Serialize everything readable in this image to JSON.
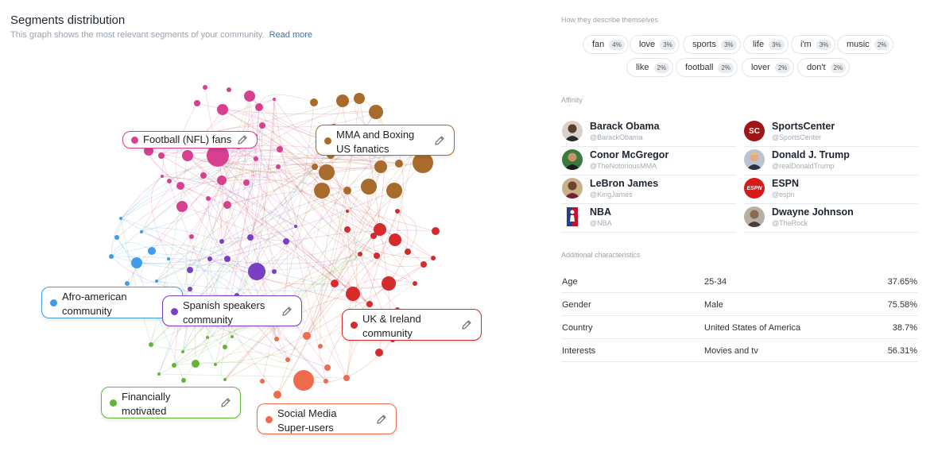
{
  "header": {
    "title": "Segments distribution",
    "subtitle": "This graph shows the most relevant segments of your community.",
    "read_more": "Read more"
  },
  "segments": [
    {
      "label": "Football (NFL) fans",
      "color": "#d6408f"
    },
    {
      "label": "MMA and Boxing US fanatics",
      "color": "#a86b2b"
    },
    {
      "label": "Afro-american community",
      "color": "#3f9ce8"
    },
    {
      "label": "Spanish speakers community",
      "color": "#7a3ec2"
    },
    {
      "label": "UK & Ireland community",
      "color": "#d52b2b"
    },
    {
      "label": "Financially motivated",
      "color": "#64b43a"
    },
    {
      "label": "Social Media Super-users",
      "color": "#ee6c4d"
    }
  ],
  "describe": {
    "title": "How they describe themselves",
    "tags": [
      {
        "word": "fan",
        "pct": "4%"
      },
      {
        "word": "love",
        "pct": "3%"
      },
      {
        "word": "sports",
        "pct": "3%"
      },
      {
        "word": "life",
        "pct": "3%"
      },
      {
        "word": "i'm",
        "pct": "3%"
      },
      {
        "word": "music",
        "pct": "2%"
      },
      {
        "word": "like",
        "pct": "2%"
      },
      {
        "word": "football",
        "pct": "2%"
      },
      {
        "word": "lover",
        "pct": "2%"
      },
      {
        "word": "don't",
        "pct": "2%"
      }
    ]
  },
  "affinity": {
    "title": "Affinity",
    "items": [
      {
        "name": "Barack Obama",
        "handle": "@BarackObama",
        "avatar_icon": "person-avatar-icon"
      },
      {
        "name": "SportsCenter",
        "handle": "@SportsCenter",
        "avatar_icon": "sportscenter-logo-icon",
        "logo_text": "SC"
      },
      {
        "name": "Conor McGregor",
        "handle": "@TheNotoriousMMA",
        "avatar_icon": "person-avatar-icon"
      },
      {
        "name": "Donald J. Trump",
        "handle": "@realDonaldTrump",
        "avatar_icon": "person-avatar-icon"
      },
      {
        "name": "LeBron James",
        "handle": "@KingJames",
        "avatar_icon": "person-avatar-icon"
      },
      {
        "name": "ESPN",
        "handle": "@espn",
        "avatar_icon": "espn-logo-icon",
        "logo_text": "ESPN"
      },
      {
        "name": "NBA",
        "handle": "@NBA",
        "avatar_icon": "nba-logo-icon"
      },
      {
        "name": "Dwayne Johnson",
        "handle": "@TheRock",
        "avatar_icon": "person-avatar-icon"
      }
    ]
  },
  "characteristics": {
    "title": "Additional characteristics",
    "rows": [
      {
        "key": "Age",
        "value": "25-34",
        "pct": "37.65%"
      },
      {
        "key": "Gender",
        "value": "Male",
        "pct": "75.58%"
      },
      {
        "key": "Country",
        "value": "United States of America",
        "pct": "38.7%"
      },
      {
        "key": "Interests",
        "value": "Movies and tv",
        "pct": "56.31%"
      }
    ]
  }
}
